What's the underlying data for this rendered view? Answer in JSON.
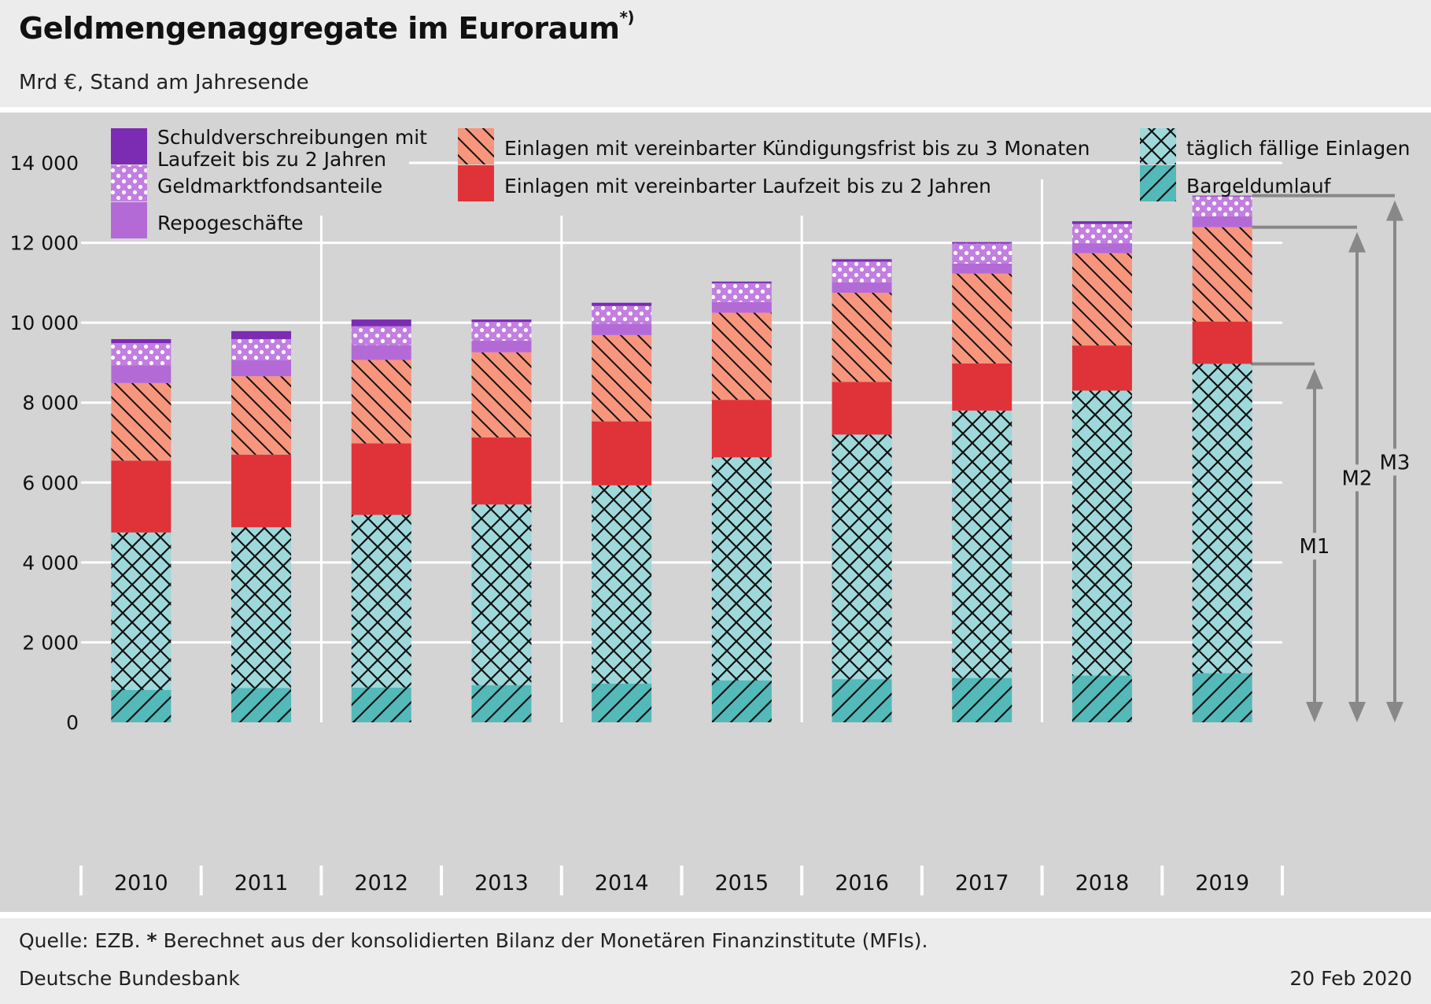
{
  "header": {
    "title": "Geldmengenaggregate im Euroraum",
    "title_note": "*)",
    "subtitle": "Mrd €, Stand am Jahresende"
  },
  "footer": {
    "source_prefix": "Quelle: EZB.",
    "source_star": "*",
    "source_text": "Berechnet aus der konsolidierten Bilanz der Monetären Finanzinstitute (MFIs).",
    "publisher": "Deutsche Bundesbank",
    "date": "20 Feb 2020"
  },
  "colors": {
    "schuld": "#7b2cb3",
    "geldmarkt": "#c27ee0",
    "repo": "#b46ad6",
    "kuend": "#f7957d",
    "laufzeit": "#e03339",
    "taeglich": "#9fd8da",
    "bargeld": "#53b9b9",
    "panel": "#d4d4d4",
    "grid": "#ffffff",
    "arrow": "#888888"
  },
  "chart_data": {
    "type": "bar",
    "stacked": true,
    "title": "Geldmengenaggregate im Euroraum",
    "ylabel": "Mrd €",
    "ylim": [
      0,
      14000
    ],
    "yticks": [
      0,
      2000,
      4000,
      6000,
      8000,
      10000,
      12000,
      14000
    ],
    "ytick_labels": [
      "0",
      "2 000",
      "4 000",
      "6 000",
      "8 000",
      "10 000",
      "12 000",
      "14 000"
    ],
    "categories": [
      "2010",
      "2011",
      "2012",
      "2013",
      "2014",
      "2015",
      "2016",
      "2017",
      "2018",
      "2019"
    ],
    "series": [
      {
        "key": "bargeld",
        "name": "Bargeldumlauf",
        "values": [
          810,
          860,
          870,
          930,
          970,
          1050,
          1080,
          1110,
          1170,
          1230
        ]
      },
      {
        "key": "taeglich",
        "name": "täglich fällige Einlagen",
        "values": [
          3940,
          4020,
          4320,
          4520,
          4960,
          5580,
          6120,
          6690,
          7130,
          7740
        ]
      },
      {
        "key": "laufzeit",
        "name": "Einlagen mit vereinbarter Laufzeit bis zu 2 Jahren",
        "values": [
          1800,
          1820,
          1790,
          1680,
          1600,
          1440,
          1320,
          1180,
          1130,
          1060
        ]
      },
      {
        "key": "kuend",
        "name": "Einlagen mit vereinbarter Kündigungsfrist  bis zu 3 Monaten",
        "values": [
          1940,
          1960,
          2090,
          2130,
          2160,
          2180,
          2230,
          2250,
          2310,
          2360
        ]
      },
      {
        "key": "repo",
        "name": "Repogeschäfte",
        "values": [
          440,
          400,
          370,
          290,
          290,
          270,
          260,
          250,
          250,
          270
        ]
      },
      {
        "key": "geldmarkt",
        "name": "Geldmarktfondsanteile",
        "values": [
          560,
          530,
          470,
          470,
          440,
          470,
          520,
          500,
          480,
          500
        ]
      },
      {
        "key": "schuld",
        "name": "Schuldverschreibungen mit Laufzeit bis zu 2 Jahren",
        "values": [
          100,
          200,
          170,
          60,
          80,
          40,
          60,
          40,
          70,
          20
        ]
      }
    ],
    "legend": {
      "placement": "top",
      "col1": [
        "schuld",
        "geldmarkt",
        "repo"
      ],
      "col2": [
        "kuend",
        "laufzeit"
      ],
      "col3": [
        "taeglich",
        "bargeld"
      ],
      "schuld_lines": [
        "Schuldverschreibungen mit",
        "Laufzeit bis zu 2 Jahren"
      ]
    },
    "annotations": [
      {
        "label": "M1",
        "year": "2019",
        "includes": [
          "bargeld",
          "taeglich"
        ]
      },
      {
        "label": "M2",
        "year": "2019",
        "includes": [
          "bargeld",
          "taeglich",
          "laufzeit",
          "kuend"
        ]
      },
      {
        "label": "M3",
        "year": "2019",
        "includes": [
          "bargeld",
          "taeglich",
          "laufzeit",
          "kuend",
          "repo",
          "geldmarkt",
          "schuld"
        ]
      }
    ]
  }
}
